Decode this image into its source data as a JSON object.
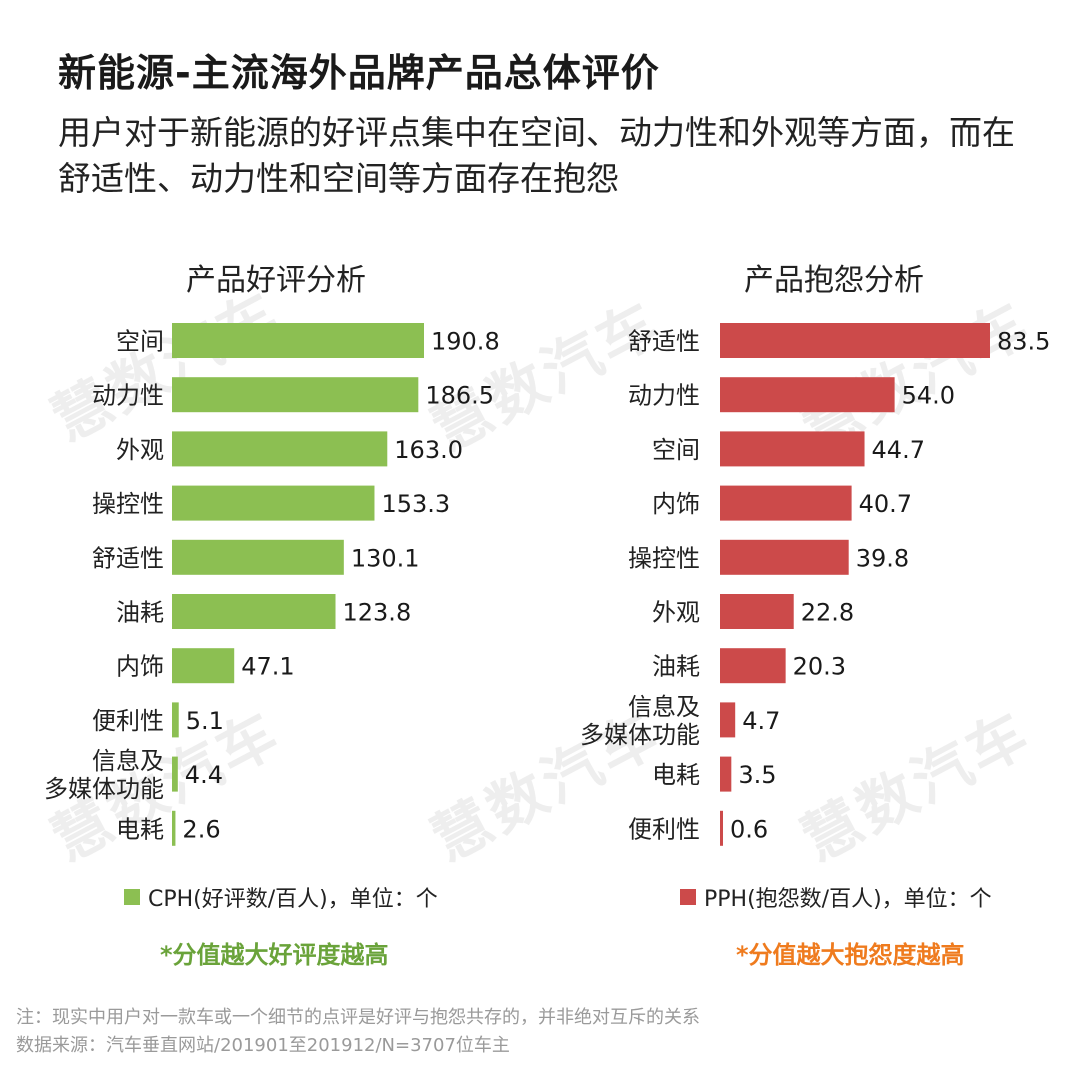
{
  "header": {
    "title": "新能源-主流海外品牌产品总体评价",
    "subtitle": "用户对于新能源的好评点集中在空间、动力性和外观等方面，而在舒适性、动力性和空间等方面存在抱怨"
  },
  "watermark": "慧数汽车",
  "colors": {
    "good": "#8cbf52",
    "bad": "#cc4a4a",
    "good_note": "#6aa33a",
    "bad_note": "#ef7b1e"
  },
  "chart_data": [
    {
      "type": "bar",
      "orientation": "horizontal",
      "title": "产品好评分析",
      "series_name": "CPH(好评数/百人)",
      "categories": [
        "空间",
        "动力性",
        "外观",
        "操控性",
        "舒适性",
        "油耗",
        "内饰",
        "便利性",
        "信息及\n多媒体功能",
        "电耗"
      ],
      "values": [
        190.8,
        186.5,
        163.0,
        153.3,
        130.1,
        123.8,
        47.1,
        5.1,
        4.4,
        2.6
      ],
      "value_labels": [
        "190.8",
        "186.5",
        "163.0",
        "153.3",
        "130.1",
        "123.8",
        "47.1",
        "5.1",
        "4.4",
        "2.6"
      ],
      "legend": "CPH(好评数/百人)，单位：个",
      "note": "*分值越大好评度越高"
    },
    {
      "type": "bar",
      "orientation": "horizontal",
      "title": "产品抱怨分析",
      "series_name": "PPH(抱怨数/百人)",
      "categories": [
        "舒适性",
        "动力性",
        "空间",
        "内饰",
        "操控性",
        "外观",
        "油耗",
        "信息及\n多媒体功能",
        "电耗",
        "便利性"
      ],
      "values": [
        83.5,
        54.0,
        44.7,
        40.7,
        39.8,
        22.8,
        20.3,
        4.7,
        3.5,
        0.6
      ],
      "value_labels": [
        "83.5",
        "54.0",
        "44.7",
        "40.7",
        "39.8",
        "22.8",
        "20.3",
        "4.7",
        "3.5",
        "0.6"
      ],
      "legend": "PPH(抱怨数/百人)，单位：个",
      "note": "*分值越大抱怨度越高"
    }
  ],
  "footnotes": {
    "line1": "注：现实中用户对一款车或一个细节的点评是好评与抱怨共存的，并非绝对互斥的关系",
    "line2": "数据来源：汽车垂直网站/201901至201912/N=3707位车主"
  }
}
